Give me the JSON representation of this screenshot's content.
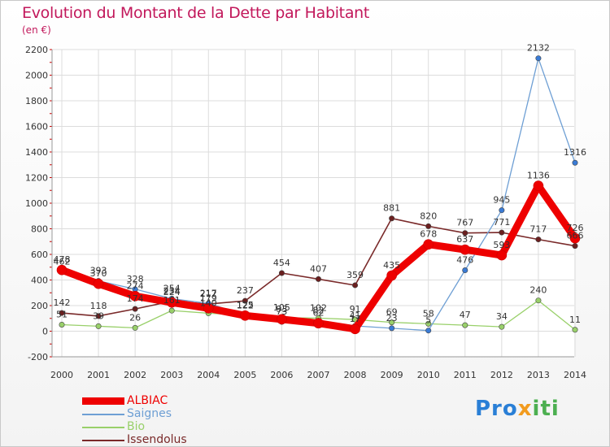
{
  "title": "Evolution du Montant de la Dette par Habitant",
  "subtitle": "(en €)",
  "logo": {
    "p1": "Pro",
    "p2": "x",
    "p3": "iti"
  },
  "legend": [
    {
      "label": "ALBIAC",
      "color": "#ee0000"
    },
    {
      "label": "Saignes",
      "color": "#6e9fd4"
    },
    {
      "label": "Bio",
      "color": "#99d06a"
    },
    {
      "label": "Issendolus",
      "color": "#7a2a2a"
    }
  ],
  "chart_data": {
    "type": "line",
    "x": [
      "2000",
      "2001",
      "2002",
      "2003",
      "2004",
      "2005",
      "2006",
      "2007",
      "2008",
      "2009",
      "2010",
      "2011",
      "2012",
      "2013",
      "2014"
    ],
    "ylim": [
      -200,
      2200
    ],
    "yticks": [
      -200,
      0,
      200,
      400,
      600,
      800,
      1000,
      1200,
      1400,
      1600,
      1800,
      2000,
      2200
    ],
    "grid": true,
    "legend_position": "bottom-left",
    "series": [
      {
        "name": "ALBIAC",
        "color": "#ee0000",
        "values": [
          478,
          370,
          274,
          224,
          179,
          122,
          93,
          62,
          17,
          435,
          678,
          637,
          593,
          1136,
          726
        ]
      },
      {
        "name": "Saignes",
        "color": "#6e9fd4",
        "values": [
          462,
          393,
          328,
          254,
          217,
          125,
          73,
          82,
          41,
          23,
          5,
          476,
          945,
          2132,
          1316
        ]
      },
      {
        "name": "Bio",
        "color": "#99d06a",
        "values": [
          51,
          39,
          26,
          161,
          140,
          125,
          105,
          102,
          91,
          69,
          58,
          47,
          34,
          240,
          11
        ]
      },
      {
        "name": "Issendolus",
        "color": "#7a2a2a",
        "values": [
          142,
          118,
          174,
          234,
          212,
          237,
          454,
          407,
          359,
          881,
          820,
          767,
          771,
          717,
          666
        ]
      }
    ]
  }
}
